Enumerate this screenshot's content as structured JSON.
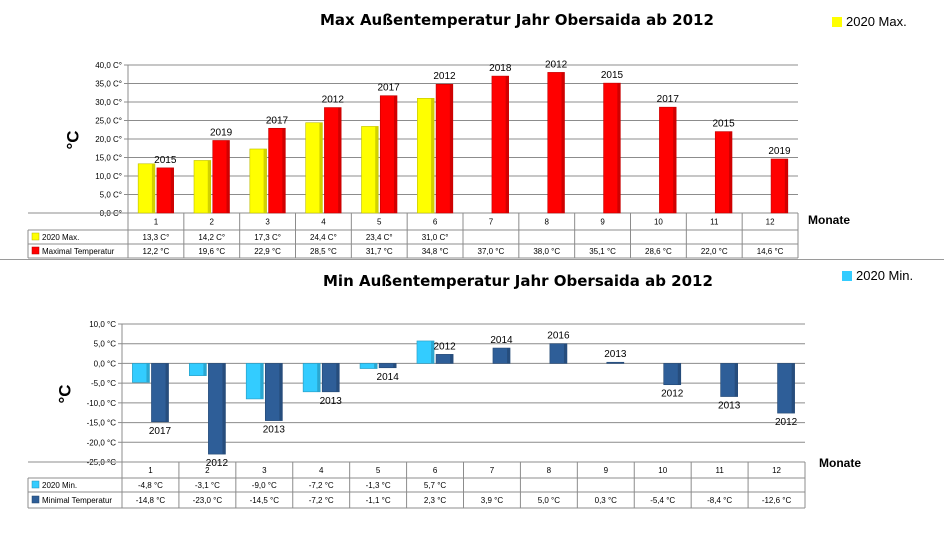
{
  "colors": {
    "yellow": "#FFFF00",
    "red": "#FF0000",
    "cyan": "#33CCFF",
    "navy": "#2E5E98",
    "grid": "#8c8c8c"
  },
  "top": {
    "title": "Max Außentemperatur Jahr Obersaida ab 2012",
    "legend": "2020 Max.",
    "ylabel": "°C",
    "xlabel": "Monate"
  },
  "bottom": {
    "title": "Min  Außentemperatur Jahr Obersaida ab 2012",
    "legend": "2020 Min.",
    "ylabel": "°C",
    "xlabel": "Monate"
  },
  "chart_data": [
    {
      "type": "bar",
      "title": "Max Außentemperatur Jahr Obersaida ab 2012",
      "xlabel": "Monate",
      "ylabel": "°C",
      "ylim": [
        0,
        40
      ],
      "ytick_step": 5,
      "ytick_labels": [
        "0,0 C°",
        "5,0 C°",
        "10,0 C°",
        "15,0 C°",
        "20,0 C°",
        "25,0 C°",
        "30,0 C°",
        "35,0 C°",
        "40,0 C°"
      ],
      "categories": [
        "1",
        "2",
        "3",
        "4",
        "5",
        "6",
        "7",
        "8",
        "9",
        "10",
        "11",
        "12"
      ],
      "grid": true,
      "legend_position": "top-right",
      "series": [
        {
          "name": "2020 Max.",
          "color": "#FFFF00",
          "values": [
            13.3,
            14.2,
            17.3,
            24.4,
            23.4,
            31.0,
            null,
            null,
            null,
            null,
            null,
            null
          ],
          "table_labels": [
            "13,3 C°",
            "14,2 C°",
            "17,3 C°",
            "24,4 C°",
            "23,4 C°",
            "31,0 C°",
            "",
            "",
            "",
            "",
            "",
            ""
          ]
        },
        {
          "name": "Maximal Temperatur",
          "color": "#FF0000",
          "values": [
            12.2,
            19.6,
            22.9,
            28.5,
            31.7,
            34.8,
            37.0,
            38.0,
            35.1,
            28.6,
            22.0,
            14.6
          ],
          "table_labels": [
            "12,2 °C",
            "19,6 °C",
            "22,9 °C",
            "28,5 °C",
            "31,7 °C",
            "34,8 °C",
            "37,0 °C",
            "38,0 °C",
            "35,1 °C",
            "28,6 °C",
            "22,0 °C",
            "14,6 °C"
          ],
          "year_labels": [
            "2015",
            "2019",
            "2017",
            "2012",
            "2017",
            "2012",
            "2018",
            "2012",
            "2015",
            "2017",
            "2015",
            "2019"
          ]
        }
      ]
    },
    {
      "type": "bar",
      "title": "Min  Außentemperatur Jahr Obersaida ab 2012",
      "xlabel": "Monate",
      "ylabel": "°C",
      "ylim": [
        -25,
        10
      ],
      "ytick_step": 5,
      "ytick_labels": [
        "-25,0 °C",
        "-20,0 °C",
        "-15,0 °C",
        "-10,0 °C",
        "-5,0 °C",
        "0,0 °C",
        "5,0 °C",
        "10,0 °C"
      ],
      "categories": [
        "1",
        "2",
        "3",
        "4",
        "5",
        "6",
        "7",
        "8",
        "9",
        "10",
        "11",
        "12"
      ],
      "grid": true,
      "legend_position": "top-right",
      "series": [
        {
          "name": "2020 Min.",
          "color": "#33CCFF",
          "values": [
            -4.8,
            -3.1,
            -9.0,
            -7.2,
            -1.3,
            5.7,
            null,
            null,
            null,
            null,
            null,
            null
          ],
          "table_labels": [
            "-4,8 °C",
            "-3,1 °C",
            "-9,0 °C",
            "-7,2 °C",
            "-1,3 °C",
            "5,7 °C",
            "",
            "",
            "",
            "",
            "",
            ""
          ]
        },
        {
          "name": "Minimal Temperatur",
          "color": "#2E5E98",
          "values": [
            -14.8,
            -23.0,
            -14.5,
            -7.2,
            -1.1,
            2.3,
            3.9,
            5.0,
            0.3,
            -5.4,
            -8.4,
            -12.6
          ],
          "table_labels": [
            "-14,8 °C",
            "-23,0 °C",
            "-14,5 °C",
            "-7,2 °C",
            "-1,1 °C",
            "2,3 °C",
            "3,9 °C",
            "5,0 °C",
            "0,3 °C",
            "-5,4 °C",
            "-8,4 °C",
            "-12,6 °C"
          ],
          "year_labels": [
            "2017",
            "2012",
            "2013",
            "2013",
            "2014",
            "2012",
            "2014",
            "2016",
            "2013",
            "2012",
            "2013",
            "2012"
          ]
        }
      ]
    }
  ]
}
